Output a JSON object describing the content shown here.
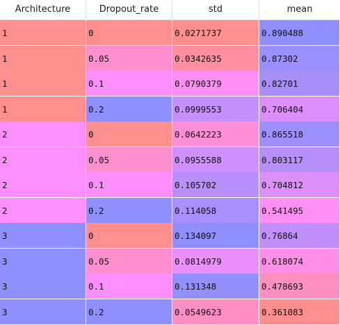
{
  "table": {
    "columns": [
      "Architecture",
      "Dropout_rate",
      "std",
      "mean"
    ],
    "rows": [
      {
        "cells": [
          "1",
          "0",
          "0.0271737",
          "0.890488"
        ],
        "colors": [
          "#fe8f8f",
          "#ff8f8f",
          "#ff8f8f",
          "#8f8fff"
        ]
      },
      {
        "cells": [
          "1",
          "0.05",
          "0.0342635",
          "0.87302"
        ],
        "colors": [
          "#fe8f8f",
          "#ff8fcf",
          "#ff8fa0",
          "#9a8fff"
        ]
      },
      {
        "cells": [
          "1",
          "0.1",
          "0.0790379",
          "0.82701"
        ],
        "colors": [
          "#fe8f8f",
          "#ff8fff",
          "#ff8ff5",
          "#a78ffa"
        ]
      },
      {
        "cells": [
          "1",
          "0.2",
          "0.0999553",
          "0.706404"
        ],
        "colors": [
          "#fe8f8f",
          "#8f8fff",
          "#c58ffc",
          "#dc8ffa"
        ]
      },
      {
        "cells": [
          "2",
          "0",
          "0.0642223",
          "0.865518"
        ],
        "colors": [
          "#fe8ffe",
          "#ff8f8f",
          "#ff8fd8",
          "#9e8fff"
        ]
      },
      {
        "cells": [
          "2",
          "0.05",
          "0.0955588",
          "0.803117"
        ],
        "colors": [
          "#fe8ffe",
          "#ff8fcf",
          "#cf8ffe",
          "#b68ff9"
        ]
      },
      {
        "cells": [
          "2",
          "0.1",
          "0.105702",
          "0.704812"
        ],
        "colors": [
          "#fe8ffe",
          "#ff8fff",
          "#b98ffe",
          "#dd8ffa"
        ]
      },
      {
        "cells": [
          "2",
          "0.2",
          "0.114058",
          "0.541495"
        ],
        "colors": [
          "#fe8ffe",
          "#8f8fff",
          "#a88ffe",
          "#ff8ff4"
        ]
      },
      {
        "cells": [
          "3",
          "0",
          "0.134097",
          "0.76864"
        ],
        "colors": [
          "#8f8fff",
          "#ff8f8f",
          "#8f8fff",
          "#c18ff9"
        ]
      },
      {
        "cells": [
          "3",
          "0.05",
          "0.0814979",
          "0.618074"
        ],
        "colors": [
          "#8f8fff",
          "#ff8fcf",
          "#ec8ffd",
          "#ff8fe7"
        ]
      },
      {
        "cells": [
          "3",
          "0.1",
          "0.131348",
          "0.478693"
        ],
        "colors": [
          "#8f8fff",
          "#ff8fff",
          "#938fff",
          "#ff8fc0"
        ]
      },
      {
        "cells": [
          "3",
          "0.2",
          "0.0549623",
          "0.361083"
        ],
        "colors": [
          "#8f8fff",
          "#8f8fff",
          "#ff8fc3",
          "#ff8f8f"
        ]
      }
    ]
  }
}
